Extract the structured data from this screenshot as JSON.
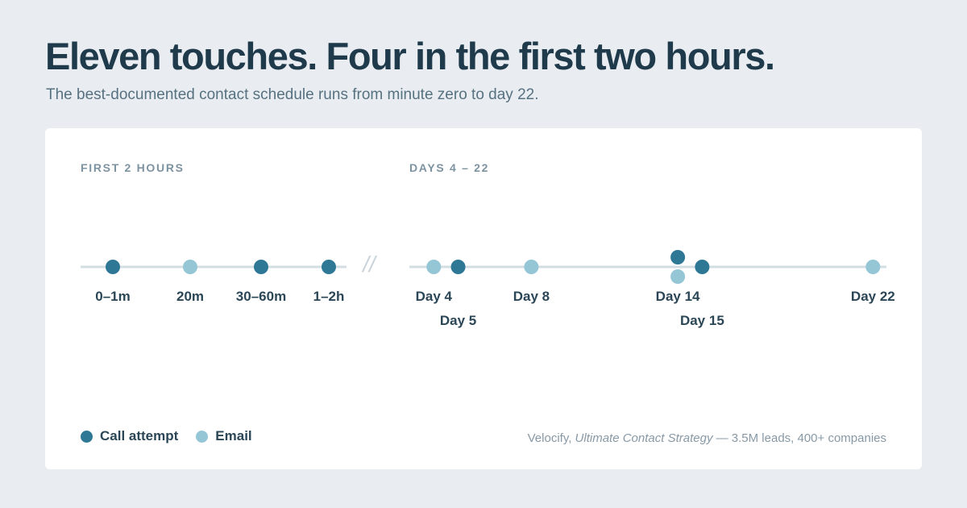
{
  "header": {
    "title": "Eleven touches. Four in the first two hours.",
    "subtitle": "The best-documented contact schedule runs from minute zero to day 22."
  },
  "colors": {
    "call": "#2e7896",
    "email": "#94c6d6",
    "track": "#d3dee3",
    "break_mark": "#c9d4da",
    "tick_label": "#2b4656"
  },
  "chart_data": {
    "type": "scatter",
    "break_symbol": "//",
    "panels": [
      {
        "label": "FIRST 2 HOURS",
        "points": [
          {
            "label": "0–1m",
            "kind": "call"
          },
          {
            "label": "20m",
            "kind": "email"
          },
          {
            "label": "30–60m",
            "kind": "call"
          },
          {
            "label": "1–2h",
            "kind": "call"
          }
        ]
      },
      {
        "label": "DAYS 4 – 22",
        "x_unit": "day",
        "xlim": [
          3.0,
          22.55
        ],
        "points": [
          {
            "label": "Day 4",
            "day": 4,
            "kind": "email"
          },
          {
            "label": "Day 5",
            "day": 5,
            "kind": "call"
          },
          {
            "label": "Day 8",
            "day": 8,
            "kind": "email"
          },
          {
            "label": "Day 14",
            "day": 14,
            "kind": "call"
          },
          {
            "label": "",
            "day": 14,
            "kind": "email"
          },
          {
            "label": "Day 15",
            "day": 15,
            "kind": "call"
          },
          {
            "label": "Day 22",
            "day": 22,
            "kind": "email"
          }
        ]
      }
    ],
    "legend": [
      {
        "label": "Call attempt",
        "kind": "call"
      },
      {
        "label": "Email",
        "kind": "email"
      }
    ],
    "legend_position": "bottom-left"
  },
  "source": {
    "prefix": "Velocify, ",
    "title": "Ultimate Contact Strategy",
    "suffix": " — 3.5M leads, 400+ companies"
  }
}
